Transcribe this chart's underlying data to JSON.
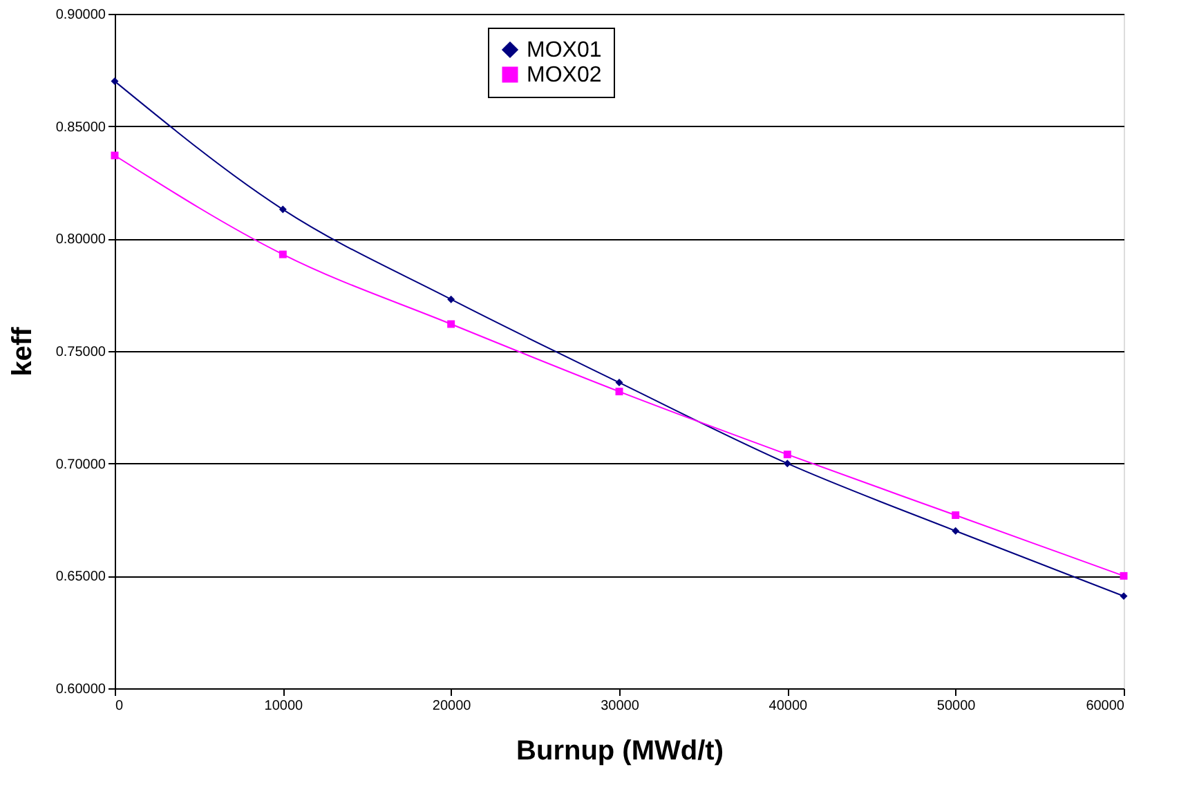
{
  "chart_data": {
    "type": "line",
    "xlabel": "Burnup (MWd/t)",
    "ylabel": "keff",
    "x": [
      0,
      10000,
      20000,
      30000,
      40000,
      50000,
      60000
    ],
    "series": [
      {
        "name": "MOX01",
        "color": "#000080",
        "marker": "diamond",
        "values": [
          0.87,
          0.813,
          0.773,
          0.736,
          0.7,
          0.67,
          0.641
        ]
      },
      {
        "name": "MOX02",
        "color": "#ff00ff",
        "marker": "square",
        "values": [
          0.837,
          0.793,
          0.762,
          0.732,
          0.704,
          0.677,
          0.65
        ]
      }
    ],
    "xlim": [
      0,
      60000
    ],
    "xticks": [
      0,
      10000,
      20000,
      30000,
      40000,
      50000,
      60000
    ],
    "ylim": [
      0.6,
      0.9
    ],
    "yticks": [
      {
        "value": 0.6,
        "label": "0.60000"
      },
      {
        "value": 0.65,
        "label": "0.65000"
      },
      {
        "value": 0.7,
        "label": "0.70000"
      },
      {
        "value": 0.75,
        "label": "0.75000"
      },
      {
        "value": 0.8,
        "label": "0.80000"
      },
      {
        "value": 0.85,
        "label": "0.85000"
      },
      {
        "value": 0.9,
        "label": "0.90000"
      }
    ],
    "grid": "y",
    "legend": "top",
    "line_style": "solid"
  }
}
